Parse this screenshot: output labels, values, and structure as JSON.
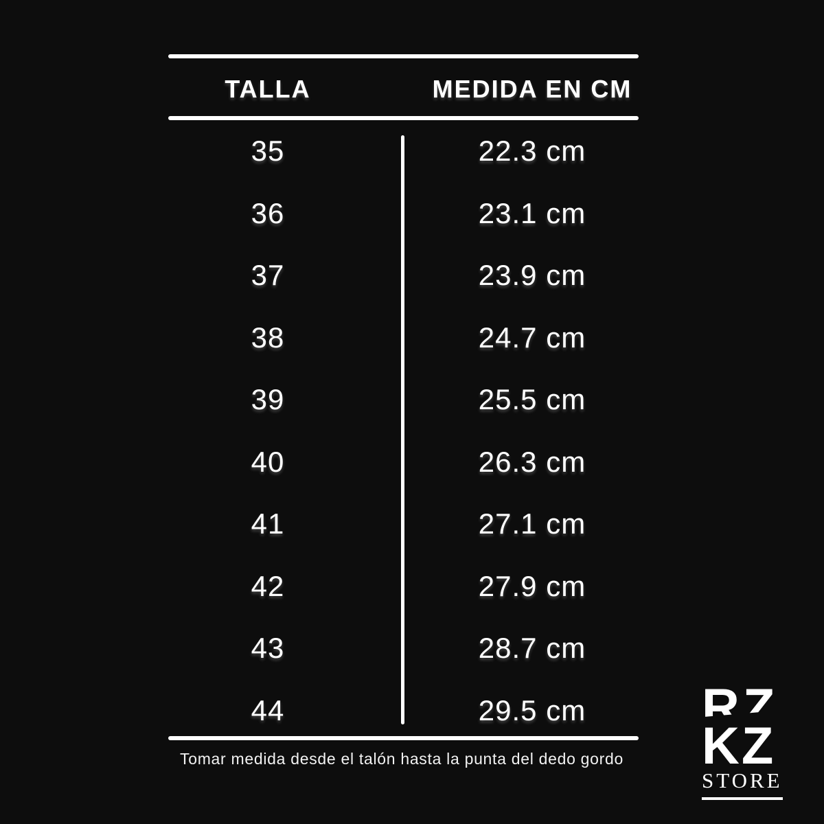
{
  "page": {
    "background_color": "#0d0d0d",
    "text_color": "#ffffff"
  },
  "chart_data": {
    "type": "table",
    "title": "",
    "columns": [
      "TALLA",
      "MEDIDA EN CM"
    ],
    "rows": [
      [
        "35",
        "22.3 cm"
      ],
      [
        "36",
        "23.1 cm"
      ],
      [
        "37",
        "23.9 cm"
      ],
      [
        "38",
        "24.7 cm"
      ],
      [
        "39",
        "25.5 cm"
      ],
      [
        "40",
        "26.3 cm"
      ],
      [
        "41",
        "27.1 cm"
      ],
      [
        "42",
        "27.9 cm"
      ],
      [
        "43",
        "28.7 cm"
      ],
      [
        "44",
        "29.5 cm"
      ]
    ],
    "layout": {
      "grid": "horizontal rules above/below header and below last row, vertical divider between columns",
      "legend_position": "none"
    }
  },
  "footer_note": "Tomar medida desde el talón hasta la punta del dedo gordo",
  "logo": {
    "monogram_fragment": "RZ",
    "monogram": "KZ",
    "store_label": "STORE"
  }
}
